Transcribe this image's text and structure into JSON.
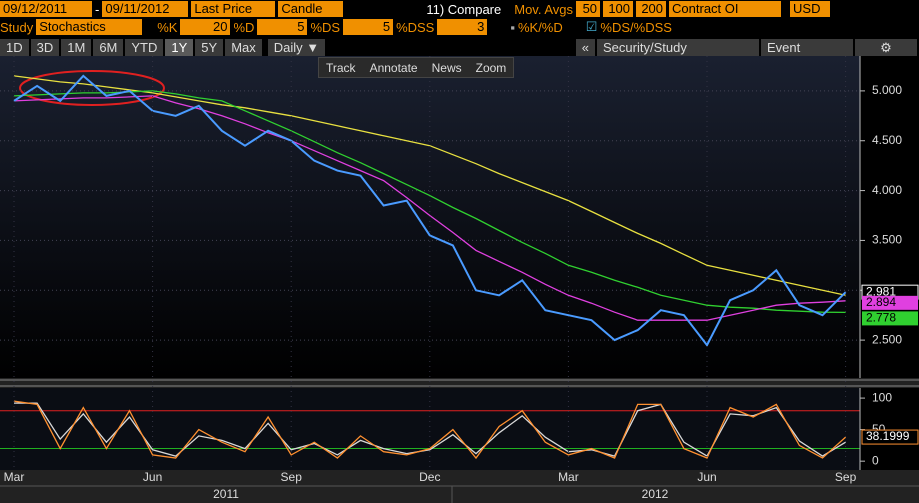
{
  "toolbar": {
    "start_date": "09/12/2011",
    "dash": "-",
    "end_date": "09/11/2012",
    "style": "Candle",
    "compare": "11) Compare",
    "mov_avgs": "Mov. Avgs",
    "contract": "Contract OI",
    "currency": "USD",
    "study_label": "Study",
    "study": "Stochastics",
    "k_label": "%K",
    "k": 20,
    "d_label": "%D",
    "d": 5,
    "ds": 5,
    "dss": 3,
    "check1": "%K/%D",
    "check2": "%DS/%DSS",
    "ranges": [
      "1D",
      "3D",
      "1M",
      "6M",
      "YTD",
      "1Y",
      "5Y",
      "Max"
    ],
    "selected_range": "1Y",
    "period": "Daily ▼",
    "collapse": "«",
    "security_study": "Security/Study",
    "event": "Event",
    "settings": "⚙",
    "tools": [
      "Track",
      "Annotate",
      "News",
      "Zoom"
    ]
  },
  "years": [
    "2011",
    "2012"
  ],
  "chart_data": [
    {
      "type": "line",
      "categories": [
        "Mar",
        null,
        null,
        null,
        null,
        null,
        "Jun",
        null,
        null,
        null,
        null,
        null,
        "Sep",
        null,
        null,
        null,
        null,
        null,
        "Dec",
        null,
        null,
        null,
        null,
        null,
        "Mar",
        null,
        null,
        null,
        null,
        null,
        "Jun",
        null,
        null,
        null,
        null,
        null,
        "Sep"
      ],
      "series": [
        {
          "name": "Last Price",
          "color": "#4a9bff",
          "values": [
            4.9,
            5.05,
            4.9,
            5.15,
            4.95,
            5.0,
            4.8,
            4.75,
            4.85,
            4.6,
            4.45,
            4.6,
            4.5,
            4.3,
            4.2,
            4.15,
            3.85,
            3.9,
            3.55,
            3.45,
            3.0,
            2.95,
            3.1,
            2.8,
            2.75,
            2.7,
            2.5,
            2.6,
            2.8,
            2.75,
            2.45,
            2.9,
            3.0,
            3.2,
            2.85,
            2.75,
            2.981
          ]
        },
        {
          "name": "50",
          "color": "#e040e0",
          "values": [
            4.9,
            4.91,
            4.92,
            4.93,
            4.93,
            4.94,
            4.95,
            4.88,
            4.82,
            4.75,
            4.67,
            4.58,
            4.5,
            4.4,
            4.3,
            4.2,
            4.1,
            3.93,
            3.75,
            3.58,
            3.4,
            3.29,
            3.18,
            3.06,
            2.95,
            2.87,
            2.78,
            2.7,
            2.7,
            2.7,
            2.7,
            2.75,
            2.8,
            2.85,
            2.87,
            2.88,
            2.894
          ]
        },
        {
          "name": "100",
          "color": "#30d030",
          "values": [
            4.95,
            4.96,
            4.97,
            4.98,
            4.98,
            4.99,
            5.0,
            4.97,
            4.93,
            4.9,
            4.8,
            4.7,
            4.6,
            4.49,
            4.38,
            4.28,
            4.17,
            4.06,
            3.95,
            3.83,
            3.72,
            3.6,
            3.48,
            3.37,
            3.25,
            3.18,
            3.1,
            3.03,
            2.95,
            2.9,
            2.85,
            2.83,
            2.82,
            2.8,
            2.79,
            2.78,
            2.778
          ]
        },
        {
          "name": "200",
          "color": "#e8e040",
          "values": [
            5.15,
            5.12,
            5.09,
            5.07,
            5.04,
            5.01,
            4.98,
            4.94,
            4.9,
            4.86,
            4.83,
            4.79,
            4.75,
            4.7,
            4.65,
            4.6,
            4.55,
            4.5,
            4.45,
            4.36,
            4.27,
            4.17,
            4.08,
            3.99,
            3.9,
            3.79,
            3.68,
            3.57,
            3.47,
            3.36,
            3.25,
            3.2,
            3.15,
            3.1,
            3.05,
            3.0,
            2.95
          ]
        }
      ],
      "ylim": [
        2.12,
        5.35
      ],
      "yticks": [
        {
          "value": 2.5,
          "label": "2.500"
        },
        {
          "value": 3,
          "label": "3.000"
        },
        {
          "value": 3.5,
          "label": "3.500"
        },
        {
          "value": 4,
          "label": "4.000"
        },
        {
          "value": 4.5,
          "label": "4.500"
        },
        {
          "value": 5,
          "label": "5.000"
        }
      ],
      "grid": true
    },
    {
      "type": "line",
      "series": [
        {
          "name": "%DS",
          "color": "#ff9030",
          "values": [
            95,
            90,
            20,
            85,
            20,
            80,
            10,
            5,
            50,
            30,
            15,
            70,
            10,
            30,
            5,
            40,
            15,
            10,
            20,
            50,
            5,
            55,
            80,
            30,
            10,
            20,
            5,
            90,
            90,
            20,
            5,
            85,
            70,
            90,
            25,
            5,
            38.1999
          ]
        },
        {
          "name": "%DSS",
          "color": "#d8d8d8",
          "values": [
            92,
            92,
            35,
            75,
            30,
            70,
            18,
            8,
            40,
            33,
            20,
            60,
            18,
            28,
            10,
            33,
            20,
            12,
            18,
            42,
            12,
            45,
            72,
            38,
            15,
            18,
            8,
            80,
            90,
            30,
            8,
            75,
            72,
            85,
            32,
            8,
            30
          ]
        }
      ],
      "ylim": [
        -14,
        116
      ],
      "yticks": [
        0,
        50,
        100
      ],
      "levels": [
        {
          "value": 80,
          "color": "#e02020"
        },
        {
          "value": 20,
          "color": "#20b020"
        }
      ]
    }
  ]
}
